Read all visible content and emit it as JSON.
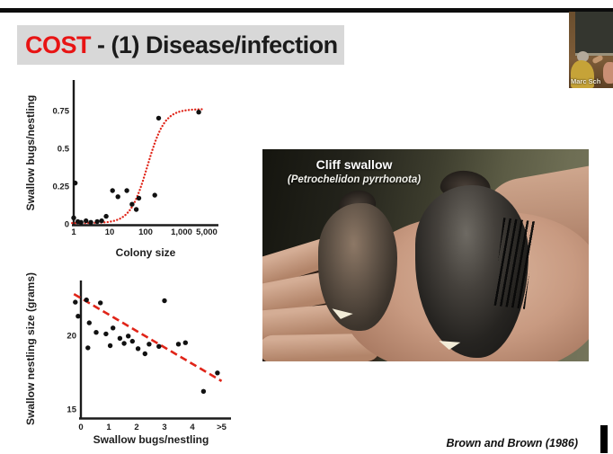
{
  "slide": {
    "title": {
      "highlight": "COST",
      "rest": " - (1) Disease/infection"
    },
    "citation": "Brown and Brown (1986)"
  },
  "video_thumbnail": {
    "participant_name": "Marc Sch"
  },
  "photo_overlay": {
    "species": "Cliff swallow",
    "latin_name": "(Petrochelidon pyrrhonota)"
  },
  "colors": {
    "title_highlight": "#e81414",
    "title_text": "#1b1b1b",
    "title_bg": "#d8d8d8",
    "data_red": "#e02418",
    "point_black": "#111111",
    "axis_black": "#1b1b1b"
  },
  "chart_data": [
    {
      "type": "scatter",
      "title": "",
      "xlabel": "Colony size",
      "ylabel": "Swallow bugs/nestling",
      "x_scale": "log",
      "grid": false,
      "x_ticks": [
        {
          "v": 1,
          "label": "1"
        },
        {
          "v": 10,
          "label": "10"
        },
        {
          "v": 100,
          "label": "100"
        },
        {
          "v": 1000,
          "label": "1,000"
        },
        {
          "v": 5000,
          "label": "5,000"
        }
      ],
      "y_ticks": [
        {
          "v": 0,
          "label": "0"
        },
        {
          "v": 0.25,
          "label": "0.25"
        },
        {
          "v": 0.5,
          "label": "0.5"
        },
        {
          "v": 0.75,
          "label": "0.75"
        }
      ],
      "xlim": [
        0.9,
        7000
      ],
      "ylim": [
        0,
        0.95
      ],
      "points": [
        [
          1,
          0.04
        ],
        [
          1.1,
          0.27
        ],
        [
          1.3,
          0.015
        ],
        [
          1.6,
          0.01
        ],
        [
          2.2,
          0.02
        ],
        [
          3,
          0.01
        ],
        [
          4.5,
          0.015
        ],
        [
          6,
          0.02
        ],
        [
          8,
          0.05
        ],
        [
          12,
          0.22
        ],
        [
          17,
          0.18
        ],
        [
          30,
          0.22
        ],
        [
          42,
          0.13
        ],
        [
          55,
          0.095
        ],
        [
          65,
          0.17
        ],
        [
          180,
          0.19
        ],
        [
          230,
          0.7
        ],
        [
          3000,
          0.74
        ]
      ],
      "fit_curve": {
        "shape": "logistic",
        "style": "dotted",
        "y_base": 0.005,
        "y_max": 0.755,
        "log10_midpoint": 2.05,
        "steepness": 4.2,
        "x_start": 0.9,
        "x_end": 4200
      }
    },
    {
      "type": "scatter",
      "title": "",
      "xlabel": "Swallow bugs/nestling",
      "ylabel": "Swallow nestling size (grams)",
      "x_scale": "linear",
      "grid": false,
      "x_ticks": [
        {
          "v": 0,
          "label": "0"
        },
        {
          "v": 1,
          "label": "1"
        },
        {
          "v": 2,
          "label": "2"
        },
        {
          "v": 3,
          "label": "3"
        },
        {
          "v": 4,
          "label": "4"
        },
        {
          "v": 5.05,
          "label": ">5"
        }
      ],
      "y_ticks": [
        {
          "v": 15,
          "label": "15"
        },
        {
          "v": 20,
          "label": "20"
        }
      ],
      "xlim": [
        -0.5,
        5.4
      ],
      "ylim": [
        14.4,
        23.7
      ],
      "points": [
        [
          -0.2,
          22.25
        ],
        [
          0.2,
          22.4
        ],
        [
          -0.1,
          21.3
        ],
        [
          0.3,
          20.85
        ],
        [
          0.25,
          19.15
        ],
        [
          0.55,
          20.2
        ],
        [
          0.7,
          22.2
        ],
        [
          0.9,
          20.1
        ],
        [
          1.05,
          19.3
        ],
        [
          1.15,
          20.5
        ],
        [
          1.4,
          19.8
        ],
        [
          1.55,
          19.45
        ],
        [
          1.7,
          19.95
        ],
        [
          1.85,
          19.6
        ],
        [
          2.05,
          19.1
        ],
        [
          2.3,
          18.75
        ],
        [
          2.45,
          19.4
        ],
        [
          2.8,
          19.25
        ],
        [
          3.0,
          22.35
        ],
        [
          3.5,
          19.4
        ],
        [
          3.75,
          19.5
        ],
        [
          4.4,
          16.2
        ],
        [
          4.9,
          17.45
        ]
      ],
      "trend_line": {
        "style": "dashed",
        "x1": -0.25,
        "y1": 22.8,
        "x2": 5.05,
        "y2": 16.9
      }
    }
  ]
}
